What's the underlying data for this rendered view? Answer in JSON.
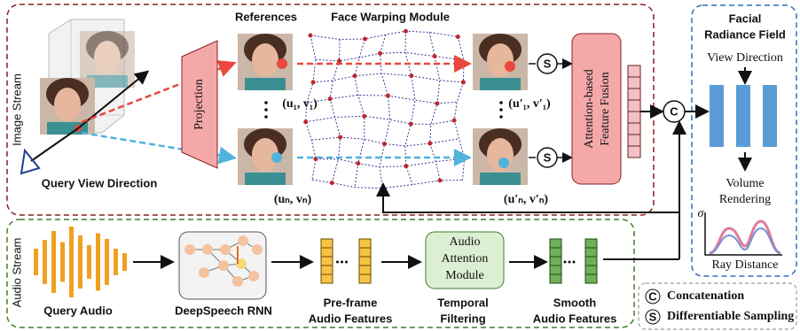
{
  "image_stream": {
    "label": "Image Stream",
    "references_title": "References",
    "warping_title": "Face Warping Module",
    "query_view": "Query View Direction",
    "projection": "Projection",
    "coords": [
      "(u₁, v₁)",
      "(uₙ, vₙ)",
      "(u′₁, v′₁)",
      "(u′ₙ, v′ₙ)"
    ],
    "fusion": [
      "Attention-based",
      "Feature Fusion"
    ],
    "sampling_symbol": "S",
    "concat_symbol": "C"
  },
  "radiance_field": {
    "title": [
      "Facial",
      "Radiance Field"
    ],
    "view_direction": "View Direction",
    "volume_rendering": [
      "Volume",
      "Rendering"
    ],
    "sigma": "σ",
    "ray_distance": "Ray Distance"
  },
  "audio_stream": {
    "label": "Audio Stream",
    "query_audio": "Query Audio",
    "deepspeech": "DeepSpeech RNN",
    "preframe": [
      "Pre-frame",
      "Audio Features"
    ],
    "attention_module": [
      "Audio",
      "Attention",
      "Module"
    ],
    "temporal": [
      "Temporal",
      "Filtering"
    ],
    "smooth": [
      "Smooth",
      "Audio Features"
    ]
  },
  "legend": {
    "concat_symbol": "C",
    "concatenation": "Concatenation",
    "sampling_symbol": "S",
    "sampling": "Differentiable Sampling"
  }
}
